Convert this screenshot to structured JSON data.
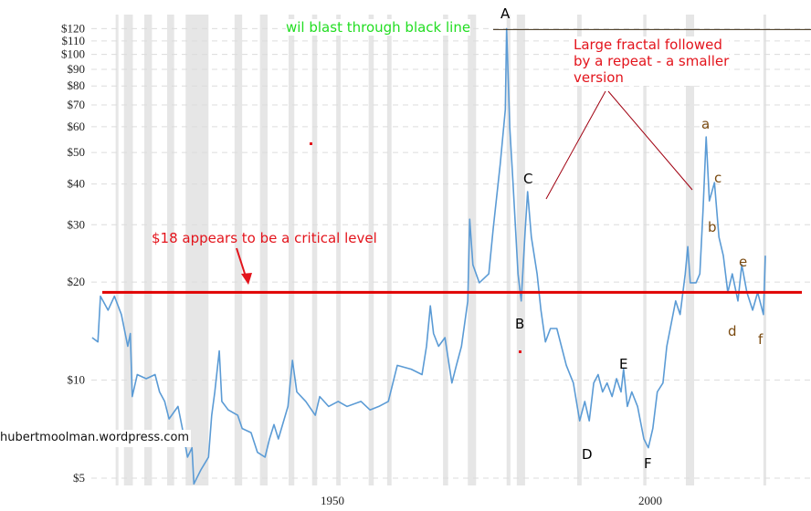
{
  "chart_data": {
    "type": "line",
    "title": "",
    "xlabel": "",
    "ylabel": "",
    "y_scale": "log",
    "xlim": [
      1912,
      2019
    ],
    "ylim": [
      4.8,
      120
    ],
    "grid": "horizontal dashed",
    "y_ticks": [
      {
        "value": 5,
        "label": "$5"
      },
      {
        "value": 10,
        "label": "$10"
      },
      {
        "value": 20,
        "label": "$20"
      },
      {
        "value": 30,
        "label": "$30"
      },
      {
        "value": 40,
        "label": "$40"
      },
      {
        "value": 50,
        "label": "$50"
      },
      {
        "value": 60,
        "label": "$60"
      },
      {
        "value": 70,
        "label": "$70"
      },
      {
        "value": 80,
        "label": "$80"
      },
      {
        "value": 90,
        "label": "$90"
      },
      {
        "value": 100,
        "label": "$100"
      },
      {
        "value": 110,
        "label": "$110"
      },
      {
        "value": 120,
        "label": "$120"
      }
    ],
    "x_ticks": [
      {
        "value": 1950,
        "label": "1950"
      },
      {
        "value": 2000,
        "label": "2000"
      }
    ],
    "shaded_periods": [
      [
        1915.9,
        1916.3
      ],
      [
        1917.2,
        1918.6
      ],
      [
        1920.4,
        1921.6
      ],
      [
        1924.0,
        1925.1
      ],
      [
        1926.9,
        1930.5
      ],
      [
        1934.6,
        1935.8
      ],
      [
        1938.6,
        1939.8
      ],
      [
        1943.1,
        1944.0
      ],
      [
        1946.8,
        1947.6
      ],
      [
        1950.6,
        1951.3
      ],
      [
        1955.7,
        1956.5
      ],
      [
        1958.6,
        1959.3
      ],
      [
        1967.4,
        1968.2
      ],
      [
        1971.3,
        1972.6
      ],
      [
        1977.4,
        1978.0
      ],
      [
        1979.0,
        1980.3
      ],
      [
        1988.5,
        1989.2
      ],
      [
        1998.9,
        1999.4
      ],
      [
        2005.6,
        2006.9
      ],
      [
        2017.8,
        2018.2
      ]
    ],
    "series": [
      {
        "color": "#5b9bd5",
        "x": [
          1912.2,
          1913.1,
          1913.5,
          1914.7,
          1915.7,
          1916.8,
          1917.8,
          1918.2,
          1918.5,
          1919.3,
          1920.7,
          1922.1,
          1922.8,
          1923.6,
          1924.3,
          1925.7,
          1926.4,
          1927.2,
          1927.9,
          1928.2,
          1929.3,
          1930.5,
          1931.0,
          1931.5,
          1932.2,
          1932.6,
          1933.6,
          1935.1,
          1935.8,
          1937.2,
          1938.2,
          1939.4,
          1940.1,
          1940.8,
          1941.5,
          1943.0,
          1943.7,
          1944.4,
          1945.8,
          1947.3,
          1948.0,
          1949.4,
          1950.9,
          1952.3,
          1954.5,
          1955.9,
          1957.3,
          1958.8,
          1960.2,
          1962.4,
          1964.1,
          1964.8,
          1965.4,
          1965.9,
          1966.7,
          1967.7,
          1968.8,
          1969.5,
          1970.3,
          1971.3,
          1971.6,
          1972.1,
          1973.1,
          1974.6,
          1975.3,
          1976.4,
          1977.2,
          1977.4,
          1977.9,
          1978.4,
          1979.2,
          1979.7,
          1980.3,
          1980.7,
          1981.3,
          1982.2,
          1982.8,
          1983.5,
          1984.3,
          1985.3,
          1986.8,
          1987.9,
          1988.9,
          1989.7,
          1990.4,
          1991.1,
          1991.8,
          1992.5,
          1993.2,
          1994.0,
          1994.7,
          1995.4,
          1995.8,
          1996.4,
          1997.1,
          1998.0,
          1999.0,
          1999.7,
          2000.4,
          2001.1,
          2002.0,
          2002.6,
          2004.0,
          2004.7,
          2005.5,
          2005.9,
          2006.3,
          2007.2,
          2007.8,
          2008.3,
          2008.8,
          2009.3,
          2010.1,
          2010.8,
          2011.5,
          2012.2,
          2012.9,
          2013.8,
          2014.4,
          2015.2,
          2016.1,
          2016.9,
          2017.8,
          2018.1
        ],
        "y": [
          13.5,
          13.1,
          18.1,
          16.4,
          18.1,
          15.9,
          12.7,
          13.9,
          8.9,
          10.4,
          10.1,
          10.4,
          9.2,
          8.6,
          7.6,
          8.3,
          7.1,
          5.8,
          6.2,
          4.8,
          5.3,
          5.8,
          7.8,
          9.2,
          12.3,
          8.6,
          8.1,
          7.8,
          7.1,
          6.9,
          6.0,
          5.8,
          6.6,
          7.3,
          6.6,
          8.3,
          11.5,
          9.2,
          8.6,
          7.8,
          8.9,
          8.3,
          8.6,
          8.3,
          8.6,
          8.1,
          8.3,
          8.6,
          11.1,
          10.8,
          10.4,
          12.7,
          16.9,
          13.9,
          12.7,
          13.5,
          9.8,
          11.1,
          12.7,
          17.5,
          31.2,
          22.6,
          19.9,
          21.2,
          29.3,
          46,
          67.7,
          120,
          59.5,
          40.4,
          21.2,
          17.5,
          28.4,
          37.9,
          27.5,
          21.2,
          16.4,
          13.1,
          14.4,
          14.4,
          11.1,
          9.8,
          7.5,
          8.6,
          7.5,
          9.8,
          10.4,
          9.2,
          9.8,
          8.9,
          10.1,
          9.2,
          10.8,
          8.3,
          9.2,
          8.3,
          6.6,
          6.2,
          7.1,
          9.2,
          9.8,
          12.7,
          17.5,
          15.9,
          21.2,
          25.7,
          19.9,
          19.9,
          21.2,
          33.3,
          55.8,
          35.5,
          40.4,
          27.5,
          24.1,
          18.6,
          21.2,
          17.5,
          22.6,
          18.6,
          16.4,
          18.6,
          15.9,
          24.1
        ]
      }
    ],
    "reference_lines": [
      {
        "value": 18.6,
        "color": "#e00000"
      },
      {
        "value": 120,
        "color": "#3a2a10"
      }
    ]
  },
  "annotations": {
    "watermark": "hubertmoolman.wordpress.com",
    "green_note": "wil blast through black line",
    "critical_note": "$18 appears to be a critical level",
    "fractal_note": [
      "Large fractal followed",
      "by a repeat - a smaller",
      "version"
    ],
    "big_letters": [
      "A",
      "B",
      "C",
      "D",
      "E",
      "F"
    ],
    "small_letters": [
      "a",
      "b",
      "c",
      "d",
      "e",
      "f"
    ],
    "colors": {
      "red": "#e3141c",
      "green": "#22dd22",
      "brown": "#7a4a10"
    }
  }
}
